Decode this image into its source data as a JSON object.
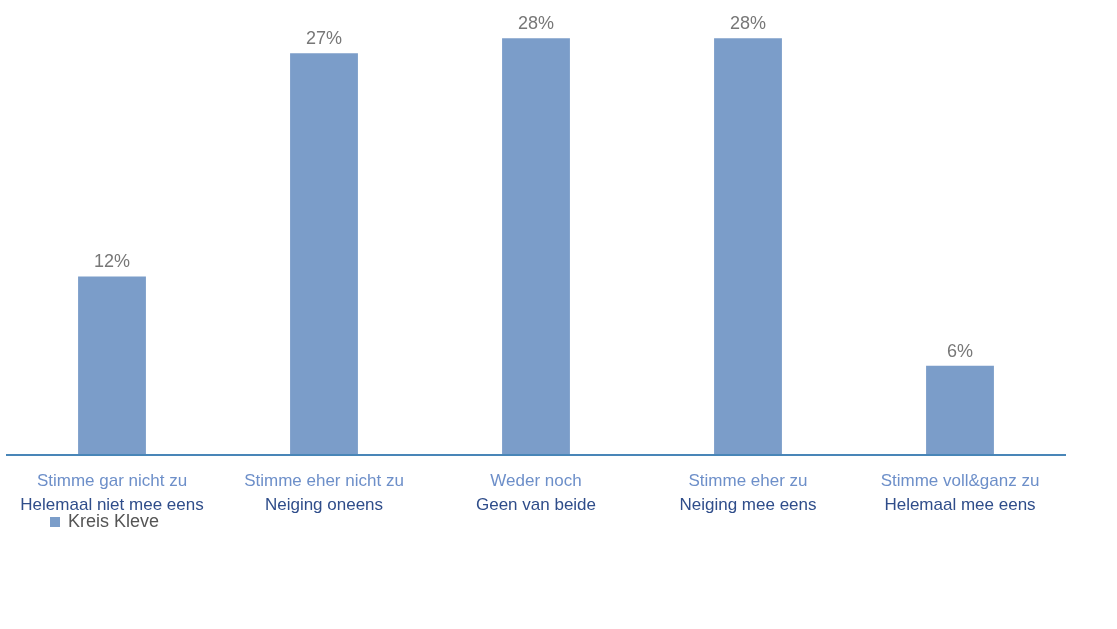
{
  "chart_data": {
    "type": "bar",
    "categories": [
      "Stimme gar nicht zu\nHelemaal niet mee eens",
      "Stimme eher nicht zu\nNeiging oneens",
      "Weder noch\nGeen van beide",
      "Stimme eher zu\nNeiging mee eens",
      "Stimme voll&ganz zu\nHelemaal mee eens"
    ],
    "series": [
      {
        "name": "Kreis Kleve",
        "color": "#7b9dc9",
        "values": [
          12,
          27,
          28,
          28,
          6
        ],
        "value_labels": [
          "12%",
          "27%",
          "28%",
          "28%",
          "6%"
        ]
      }
    ],
    "legend": "bottom",
    "grid": false
  }
}
